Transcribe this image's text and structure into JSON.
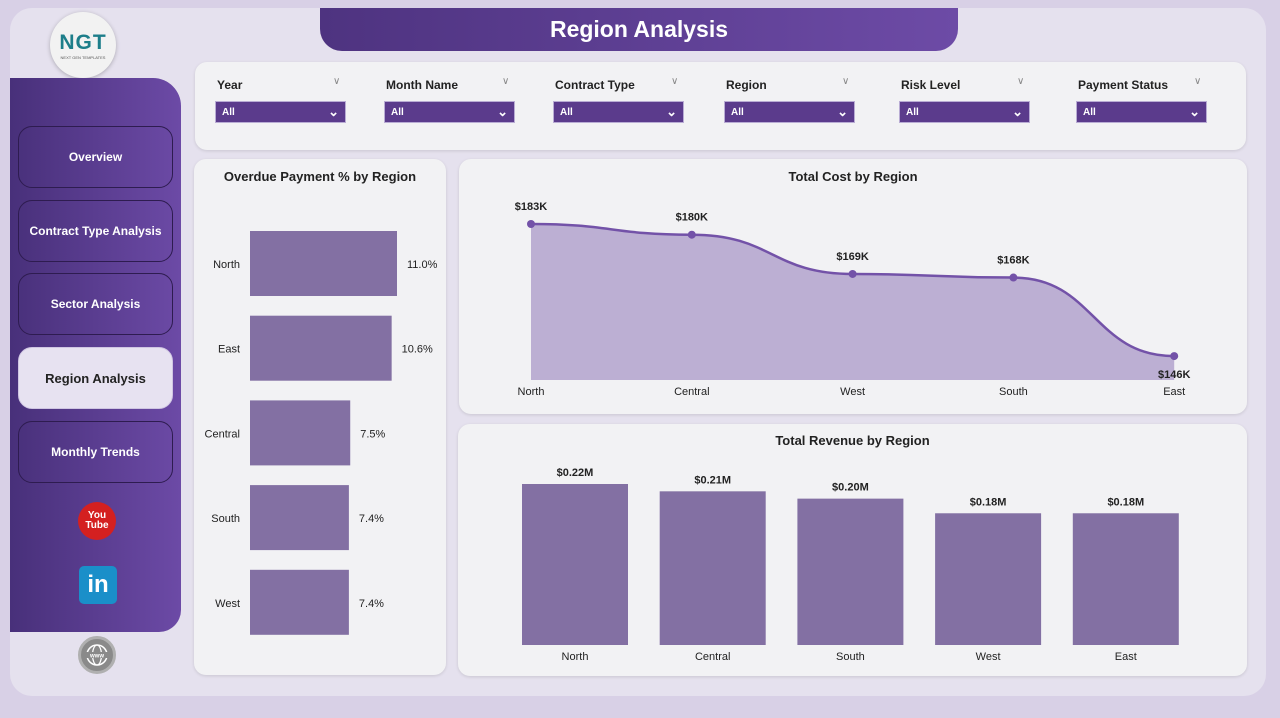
{
  "header": {
    "title": "Region Analysis"
  },
  "logo": {
    "text": "NGT",
    "subtext": "NEXT GEN TEMPLATES"
  },
  "sidebar": {
    "items": [
      {
        "label": "Overview"
      },
      {
        "label": "Contract Type Analysis"
      },
      {
        "label": "Sector Analysis"
      },
      {
        "label": "Region Analysis",
        "active": true
      },
      {
        "label": "Monthly Trends"
      }
    ],
    "icons": [
      "youtube-icon",
      "linkedin-icon",
      "website-icon"
    ],
    "youtube_text": "You Tube",
    "linkedin_text": "in"
  },
  "filters": [
    {
      "label": "Year",
      "value": "All"
    },
    {
      "label": "Month Name",
      "value": "All"
    },
    {
      "label": "Contract Type",
      "value": "All"
    },
    {
      "label": "Region",
      "value": "All"
    },
    {
      "label": "Risk Level",
      "value": "All"
    },
    {
      "label": "Payment Status",
      "value": "All"
    }
  ],
  "colors": {
    "accent": "#5b3b8c",
    "bar": "#8370a3",
    "line": "#7352a8",
    "area": "#bcafd3"
  },
  "chart_data": [
    {
      "type": "bar",
      "orientation": "horizontal",
      "title": "Overdue Payment % by Region",
      "categories": [
        "North",
        "East",
        "Central",
        "South",
        "West"
      ],
      "values": [
        11.0,
        10.6,
        7.5,
        7.4,
        7.4
      ],
      "labels": [
        "11.0%",
        "10.6%",
        "7.5%",
        "7.4%",
        "7.4%"
      ]
    },
    {
      "type": "area",
      "title": "Total Cost by Region",
      "categories": [
        "North",
        "Central",
        "West",
        "South",
        "East"
      ],
      "values": [
        183,
        180,
        169,
        168,
        146
      ],
      "labels": [
        "$183K",
        "$180K",
        "$169K",
        "$168K",
        "$146K"
      ],
      "unit": "K"
    },
    {
      "type": "bar",
      "title": "Total Revenue by Region",
      "categories": [
        "North",
        "Central",
        "South",
        "West",
        "East"
      ],
      "values": [
        0.22,
        0.21,
        0.2,
        0.18,
        0.18
      ],
      "labels": [
        "$0.22M",
        "$0.21M",
        "$0.20M",
        "$0.18M",
        "$0.18M"
      ],
      "unit": "M"
    }
  ]
}
